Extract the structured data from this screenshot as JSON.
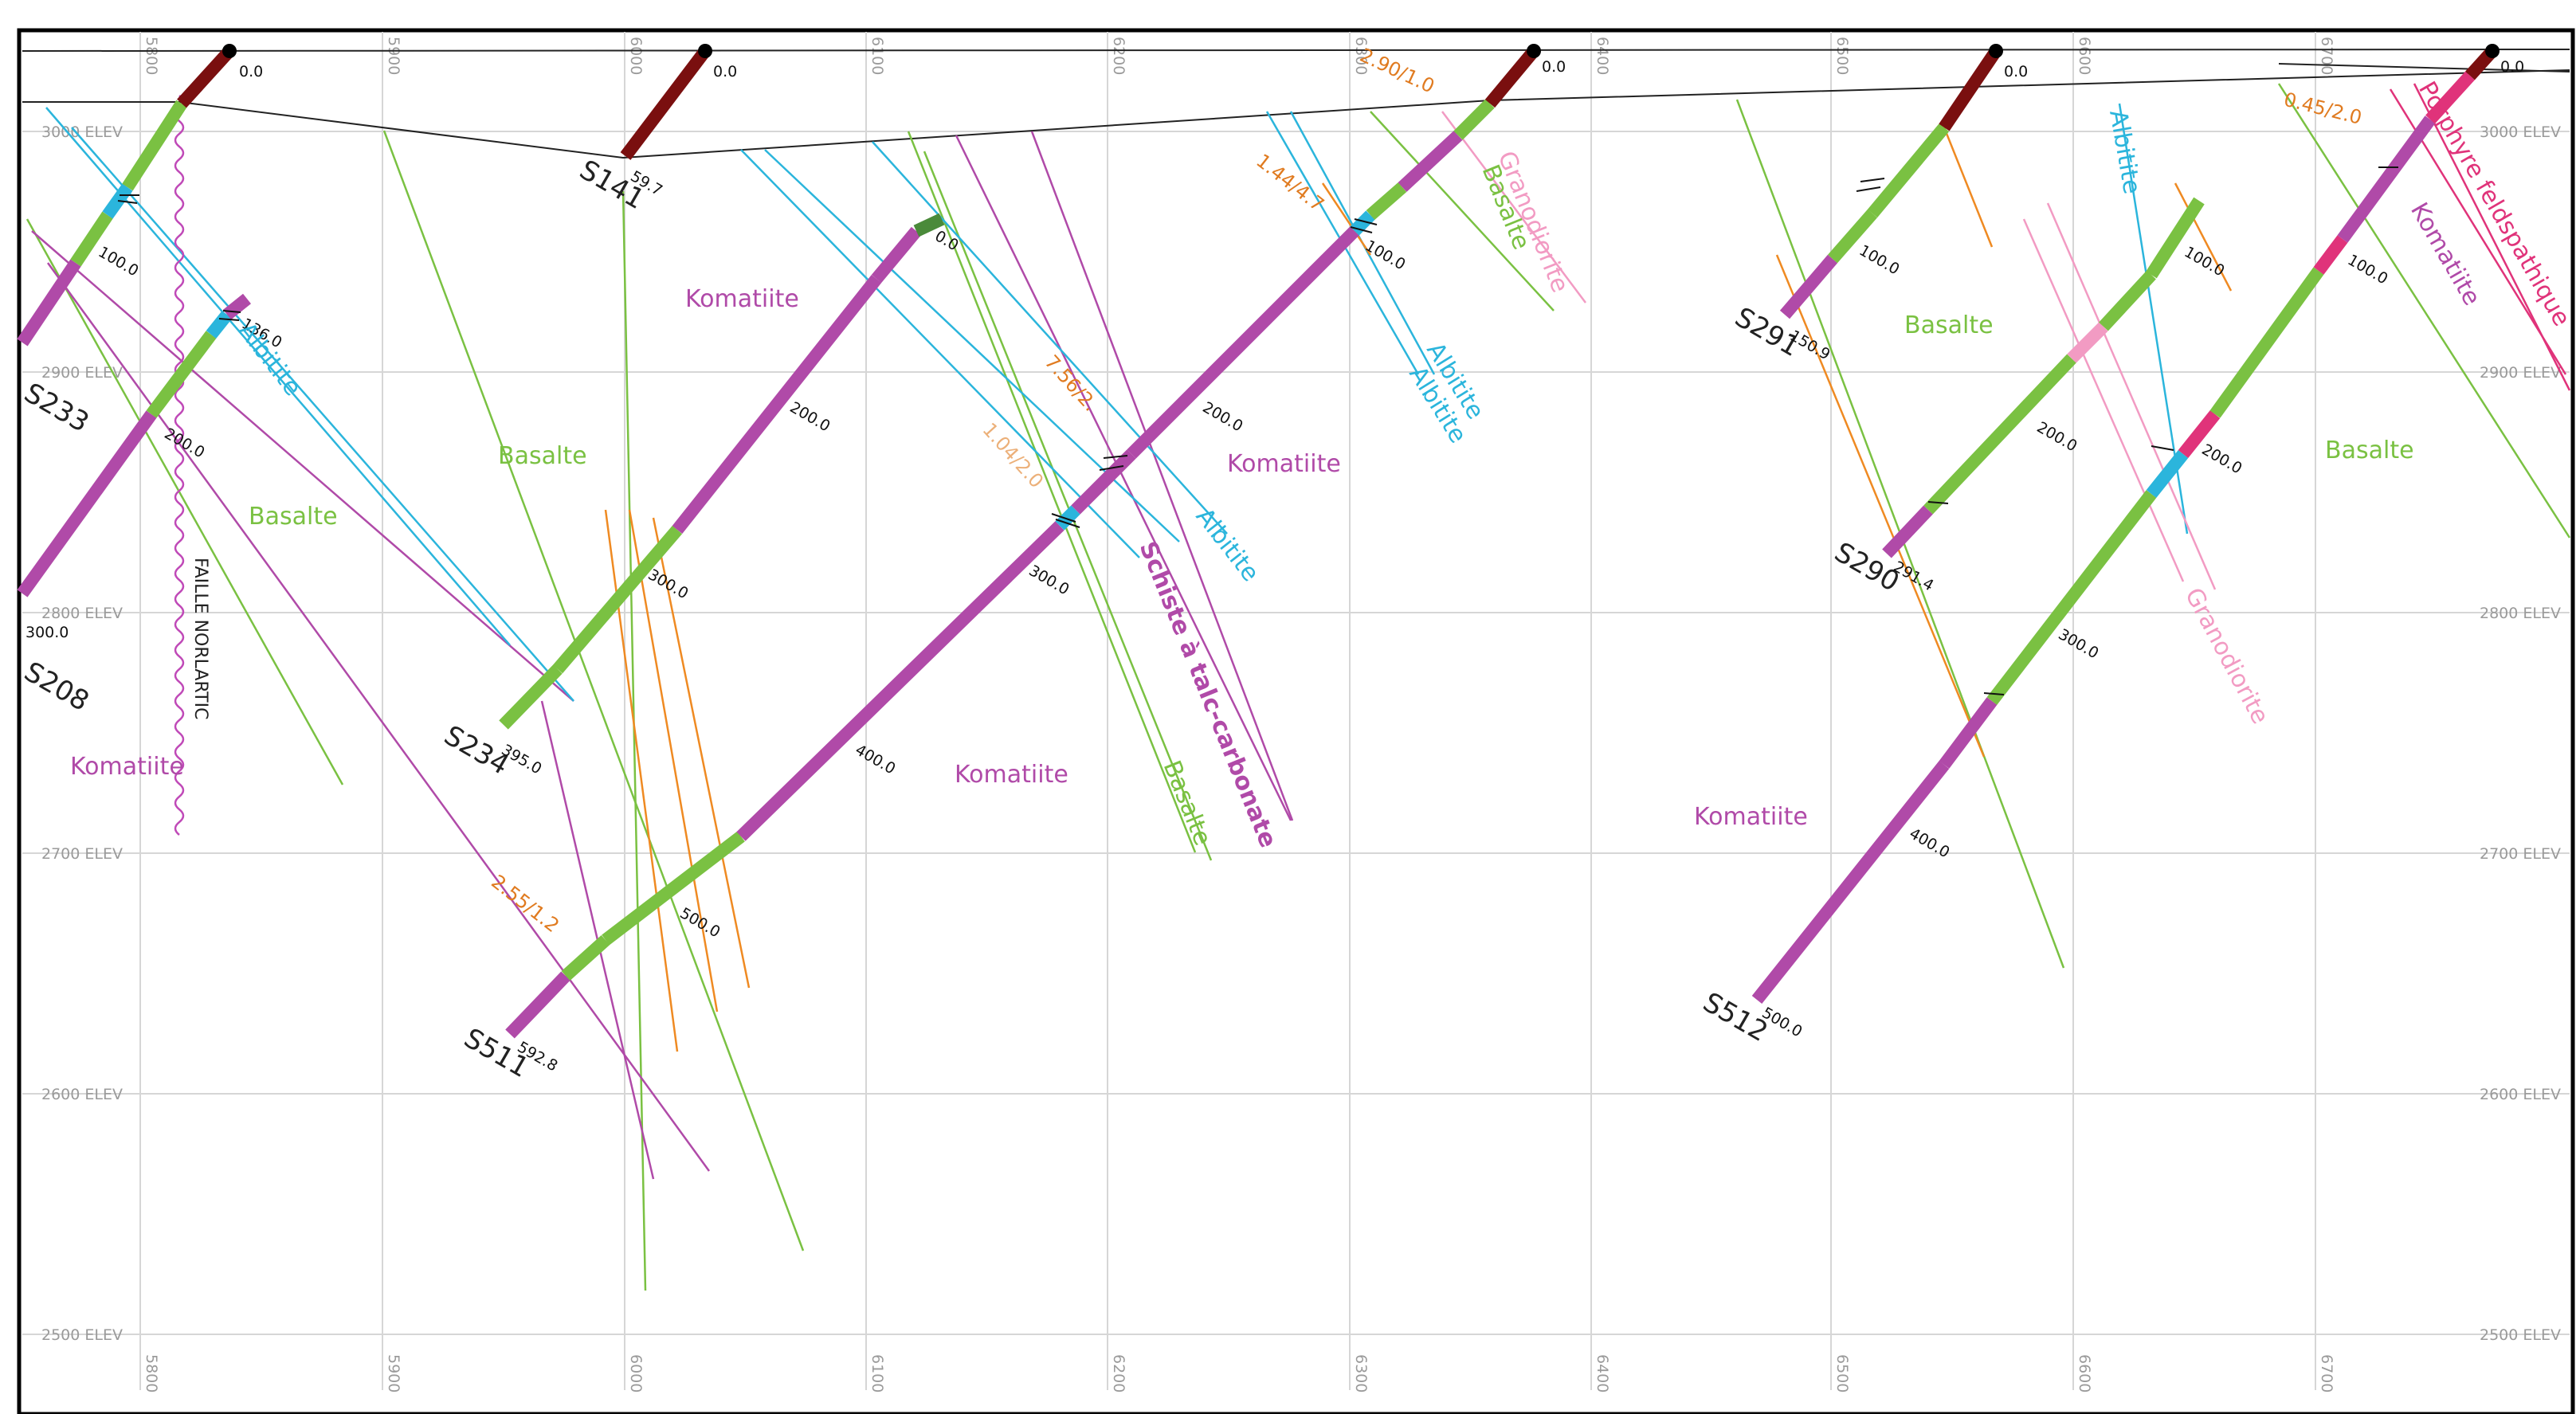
{
  "grid": {
    "elevations": [
      "3000 ELEV",
      "2900 ELEV",
      "2800 ELEV",
      "2700 ELEV",
      "2600 ELEV",
      "2500 ELEV"
    ],
    "eastings": [
      "5800",
      "5900",
      "6000",
      "6100",
      "6200",
      "6300",
      "6400",
      "6500",
      "6600",
      "6700"
    ]
  },
  "colors": {
    "komatiite": "#b04aa8",
    "basalte": "#7ac142",
    "albitite": "#2bb5dc",
    "granodiorite": "#f29bc3",
    "porphyre": "#e0337a",
    "casing": "#7a0f0f",
    "orange_vein": "#ef8a22",
    "schiste": "#b04aa8",
    "grid": "#d6d6d6"
  },
  "holes": [
    {
      "id": "S233",
      "end": "",
      "depths": [
        "100.0"
      ]
    },
    {
      "id": "S208",
      "end": "300.0",
      "depths": [
        "100.0",
        "200.0"
      ]
    },
    {
      "id": "S234",
      "end": "395.0",
      "depths": [
        "136.0",
        "200.0",
        "300.0"
      ]
    },
    {
      "id": "S141",
      "end": "59.7",
      "depths": [
        "0.0"
      ]
    },
    {
      "id": "S511",
      "end": "592.8",
      "depths": [
        "100.0",
        "200.0",
        "300.0",
        "400.0",
        "500.0"
      ]
    },
    {
      "id": "S291",
      "end": "150.9",
      "depths": [
        "100.0"
      ]
    },
    {
      "id": "S290",
      "end": "291.4",
      "depths": [
        "100.0",
        "200.0"
      ]
    },
    {
      "id": "S512",
      "end": "500.0",
      "depths": [
        "100.0",
        "200.0",
        "300.0",
        "400.0"
      ]
    }
  ],
  "collar_label": "0.0",
  "lithology_labels": [
    {
      "text": "Komatiite",
      "color": "#b04aa8"
    },
    {
      "text": "Basalte",
      "color": "#7ac142"
    },
    {
      "text": "Basalte",
      "color": "#7ac142"
    },
    {
      "text": "Komatiite",
      "color": "#b04aa8"
    },
    {
      "text": "Komatiite",
      "color": "#b04aa8"
    },
    {
      "text": "Komatiite",
      "color": "#b04aa8"
    },
    {
      "text": "Komatiite",
      "color": "#b04aa8"
    },
    {
      "text": "Basalte",
      "color": "#7ac142"
    },
    {
      "text": "Basalte",
      "color": "#7ac142"
    },
    {
      "text": "Komatiite",
      "color": "#b04aa8"
    }
  ],
  "rotated_labels": [
    {
      "text": "Albitite",
      "color": "#2bb5dc"
    },
    {
      "text": "Albitite",
      "color": "#2bb5dc"
    },
    {
      "text": "Albitite",
      "color": "#2bb5dc"
    },
    {
      "text": "Albitite",
      "color": "#2bb5dc"
    },
    {
      "text": "Albitite",
      "color": "#2bb5dc"
    },
    {
      "text": "Schiste à talc-carbonate",
      "color": "#b04aa8"
    },
    {
      "text": "Basalte",
      "color": "#7ac142"
    },
    {
      "text": "Granodiorite",
      "color": "#f29bc3"
    },
    {
      "text": "Basalte",
      "color": "#7ac142"
    },
    {
      "text": "Granodiorite",
      "color": "#f29bc3"
    },
    {
      "text": "Porphyre feldspathique",
      "color": "#e0337a"
    },
    {
      "text": "Komatiite",
      "color": "#b04aa8"
    },
    {
      "text": "FAILLE NORLARTIC",
      "color": "#222222"
    }
  ],
  "assays": [
    {
      "text": "2.90/1.0",
      "color": "#e07b20"
    },
    {
      "text": "1.44/4.7",
      "color": "#e07b20"
    },
    {
      "text": "7.56/2.",
      "color": "#e07b20"
    },
    {
      "text": "1.04/2.0",
      "color": "#e07b20"
    },
    {
      "text": "2.55/1.2",
      "color": "#e07b20"
    },
    {
      "text": "0.45/2.0",
      "color": "#222222"
    }
  ]
}
